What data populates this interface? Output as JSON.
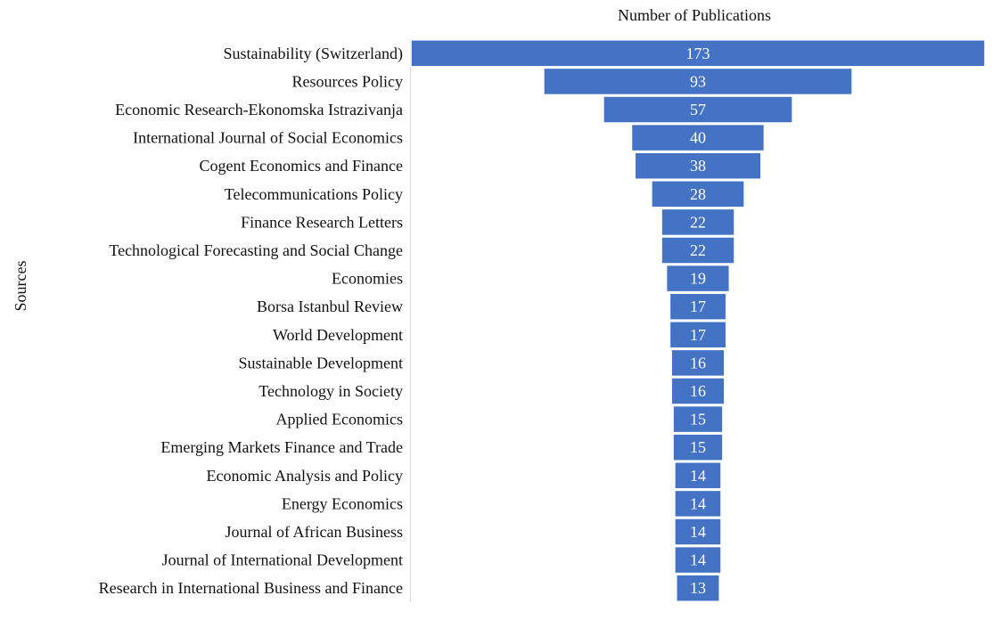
{
  "chart_data": {
    "type": "bar",
    "orientation": "horizontal-funnel",
    "xlabel": "Number of Publications",
    "ylabel": "Sources",
    "categories": [
      "Sustainability (Switzerland)",
      "Resources Policy",
      "Economic Research-Ekonomska Istrazivanja",
      "International Journal of Social Economics",
      "Cogent Economics and Finance",
      "Telecommunications Policy",
      "Finance Research Letters",
      "Technological Forecasting and Social Change",
      "Economies",
      "Borsa Istanbul Review",
      "World Development",
      "Sustainable Development",
      "Technology in Society",
      "Applied Economics",
      "Emerging Markets Finance and Trade",
      "Economic Analysis and Policy",
      "Energy Economics",
      "Journal of African Business",
      "Journal of International Development",
      "Research in International Business and Finance"
    ],
    "values": [
      173,
      93,
      57,
      40,
      38,
      28,
      22,
      22,
      19,
      17,
      17,
      16,
      16,
      15,
      15,
      14,
      14,
      14,
      14,
      13
    ],
    "bar_color": "#4472c4",
    "bar_border_color": "#ffffff",
    "value_label_color": "#ffffff",
    "grid": false,
    "legend": "none"
  }
}
